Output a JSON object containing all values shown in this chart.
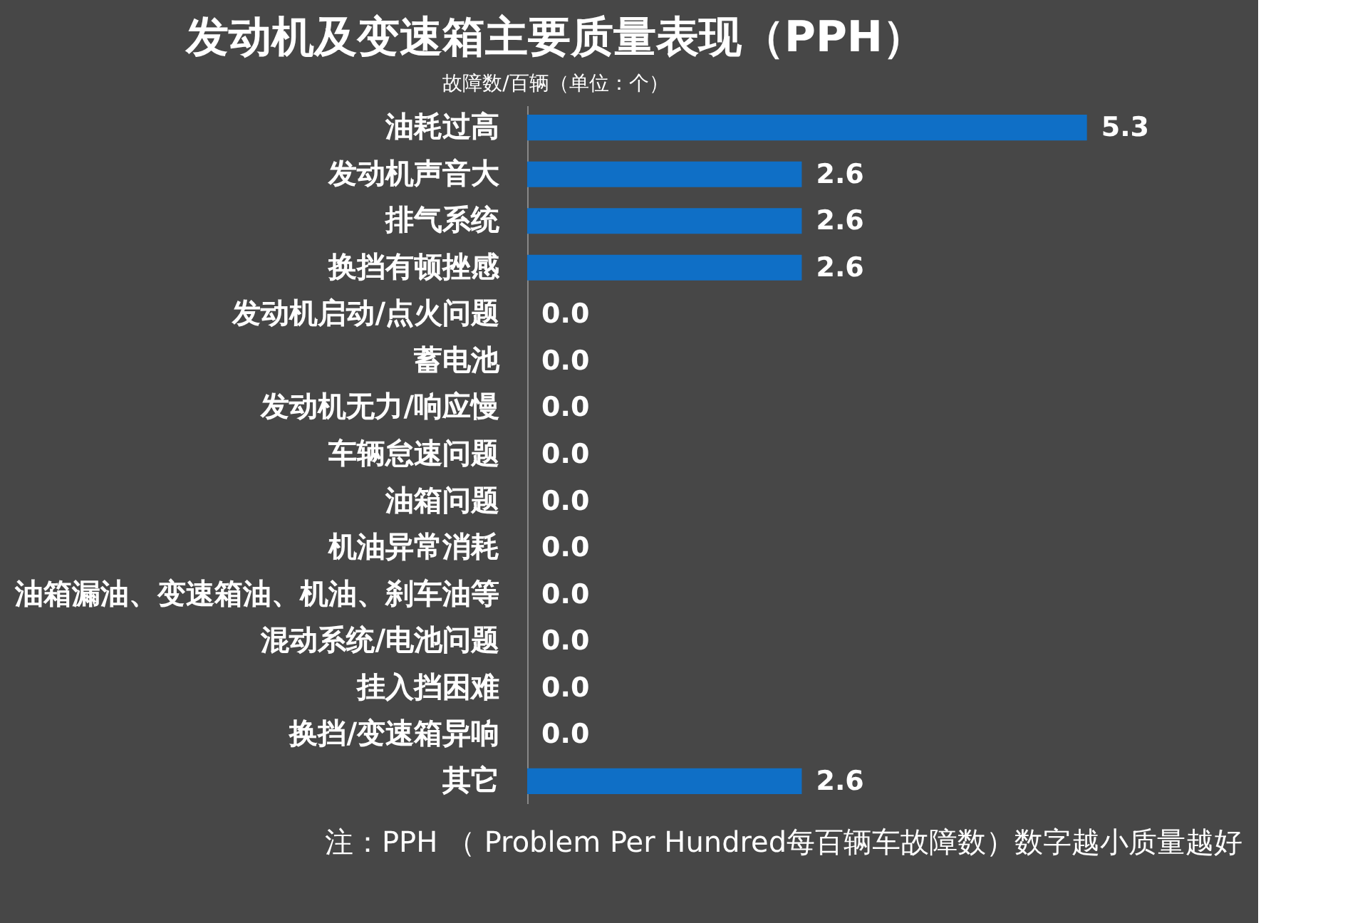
{
  "chart_data": {
    "type": "bar",
    "orientation": "horizontal",
    "title": "发动机及变速箱主要质量表现（PPH）",
    "subtitle": "故障数/百辆（单位：个）",
    "categories": [
      "油耗过高",
      "发动机声音大",
      "排气系统",
      "换挡有顿挫感",
      "发动机启动/点火问题",
      "蓄电池",
      "发动机无力/响应慢",
      "车辆怠速问题",
      "油箱问题",
      "机油异常消耗",
      "油箱漏油、变速箱油、机油、刹车油等",
      "混动系统/电池问题",
      "挂入挡困难",
      "换挡/变速箱异响",
      "其它"
    ],
    "values": [
      5.3,
      2.6,
      2.6,
      2.6,
      0.0,
      0.0,
      0.0,
      0.0,
      0.0,
      0.0,
      0.0,
      0.0,
      0.0,
      0.0,
      2.6
    ],
    "color": "#0f6fc6",
    "value_labels": [
      "5.3",
      "2.6",
      "2.6",
      "2.6",
      "0.0",
      "0.0",
      "0.0",
      "0.0",
      "0.0",
      "0.0",
      "0.0",
      "0.0",
      "0.0",
      "0.0",
      "2.6"
    ],
    "annotations": [
      "注：PPH （ Problem Per Hundred每百辆车故障数）数字越小质量越好"
    ]
  }
}
